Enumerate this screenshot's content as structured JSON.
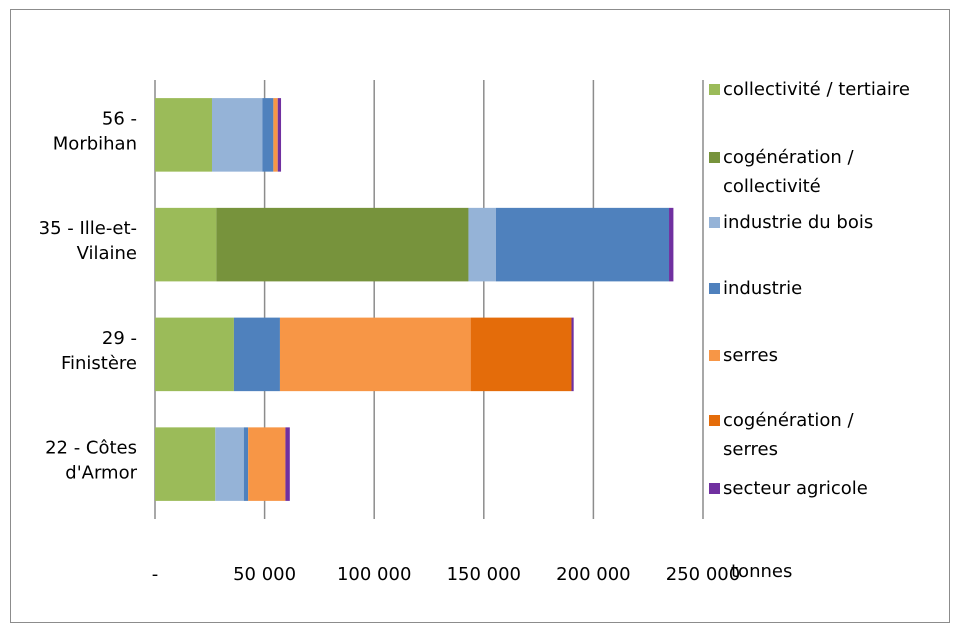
{
  "chart_data": {
    "type": "bar",
    "orientation": "horizontal",
    "stacked": true,
    "categories": [
      [
        "56 -",
        "Morbihan"
      ],
      [
        "35 - Ille-et-",
        "Vilaine"
      ],
      [
        "29 -",
        "Finistère"
      ],
      [
        "22 - Côtes",
        "d'Armor"
      ]
    ],
    "series": [
      {
        "name": [
          "collectivité / tertiaire"
        ],
        "color": "#9bbb59",
        "values": [
          26000,
          28000,
          36000,
          27500
        ]
      },
      {
        "name": [
          "cogénération /",
          "collectivité"
        ],
        "color": "#77933c",
        "values": [
          0,
          115000,
          0,
          0
        ]
      },
      {
        "name": [
          "industrie du bois"
        ],
        "color": "#95b3d7",
        "values": [
          23000,
          12500,
          0,
          13000
        ]
      },
      {
        "name": [
          "industrie"
        ],
        "color": "#4f81bd",
        "values": [
          5000,
          79000,
          21000,
          2000
        ]
      },
      {
        "name": [
          "serres"
        ],
        "color": "#f79646",
        "values": [
          2000,
          0,
          87000,
          17000
        ]
      },
      {
        "name": [
          "cogénération /",
          "serres"
        ],
        "color": "#e46c0a",
        "values": [
          0,
          0,
          46000,
          0
        ]
      },
      {
        "name": [
          "secteur agricole"
        ],
        "color": "#7030a0",
        "values": [
          1500,
          2000,
          1000,
          2000
        ]
      }
    ],
    "x_ticks": [
      {
        "value": 0,
        "label": "-"
      },
      {
        "value": 50000,
        "label": "50 000"
      },
      {
        "value": 100000,
        "label": "100 000"
      },
      {
        "value": 150000,
        "label": "150 000"
      },
      {
        "value": 200000,
        "label": "200 000"
      },
      {
        "value": 250000,
        "label": "250 000"
      }
    ],
    "xlim": [
      0,
      250000
    ],
    "xlabel": "tonnes",
    "grid": "vertical",
    "legend_position": "right"
  }
}
